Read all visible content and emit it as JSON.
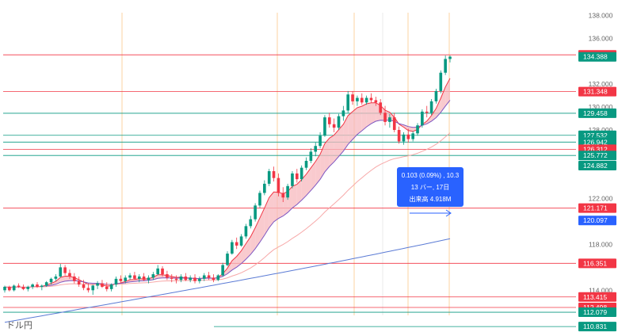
{
  "footer": {
    "label": "ドル円"
  },
  "tooltip": {
    "line1": "0.103 (0.09%) , 10.3",
    "line2": "13 バー, 17日",
    "line3": "出来高 4.918M"
  },
  "chart_data": {
    "type": "candlestick",
    "yaxis_ticks": [
      {
        "value": 138.0,
        "label": "138.000"
      },
      {
        "value": 136.0,
        "label": "136.000"
      },
      {
        "value": 132.0,
        "label": "132.000"
      },
      {
        "value": 130.0,
        "label": "130.000"
      },
      {
        "value": 128.0,
        "label": "128.000"
      },
      {
        "value": 122.0,
        "label": "122.000"
      },
      {
        "value": 118.0,
        "label": "118.000"
      },
      {
        "value": 114.0,
        "label": "114.000"
      }
    ],
    "ylim": [
      110.0,
      139.0
    ],
    "price_lines": [
      {
        "value": 134.56,
        "label": "134.560",
        "color": "#f23645",
        "line": "#f23645"
      },
      {
        "value": 134.388,
        "label": "134.388",
        "color": "#089981",
        "line": ""
      },
      {
        "value": 131.348,
        "label": "131.348",
        "color": "#f23645",
        "line": "#f23645"
      },
      {
        "value": 129.458,
        "label": "129.458",
        "color": "#089981",
        "line": "#089981"
      },
      {
        "value": 127.532,
        "label": "127.532",
        "color": "#089981",
        "line": "#089981"
      },
      {
        "value": 126.942,
        "label": "126.942",
        "color": "#089981",
        "line": "#089981"
      },
      {
        "value": 126.312,
        "label": "126.312",
        "color": "#f23645",
        "line": "#f23645"
      },
      {
        "value": 125.772,
        "label": "125.772",
        "color": "#089981",
        "line": "#089981"
      },
      {
        "value": 124.882,
        "label": "124.882",
        "color": "#089981",
        "line": ""
      },
      {
        "value": 121.171,
        "label": "121.171",
        "color": "#f23645",
        "line": "#f23645"
      },
      {
        "value": 120.097,
        "label": "120.097",
        "color": "#2962ff",
        "line": ""
      },
      {
        "value": 116.351,
        "label": "116.351",
        "color": "#f23645",
        "line": "#f23645"
      },
      {
        "value": 113.415,
        "label": "113.415",
        "color": "#f23645",
        "line": "#f23645"
      },
      {
        "value": 112.498,
        "label": "112.498",
        "color": "#f23645",
        "line": "#f23645"
      },
      {
        "value": 112.079,
        "label": "112.079",
        "color": "#089981",
        "line": "#089981"
      },
      {
        "value": 110.831,
        "label": "110.831",
        "color": "#089981",
        "line": "#089981"
      }
    ],
    "colors": {
      "up": "#089981",
      "down": "#f23645",
      "ema_fast": "#f23645",
      "ema_slow": "#7e57c2",
      "ma_mid": "#f7a8a8",
      "ma_long": "#5b7bd5",
      "cloud": "#f7b8bd",
      "vline": "#fbc88a"
    },
    "ohlc": [
      [
        114.0,
        114.4,
        113.8,
        114.3
      ],
      [
        114.3,
        114.4,
        113.9,
        114.0
      ],
      [
        114.0,
        114.5,
        113.9,
        114.4
      ],
      [
        114.4,
        114.6,
        114.2,
        114.3
      ],
      [
        114.3,
        114.5,
        114.0,
        114.1
      ],
      [
        114.1,
        114.4,
        113.9,
        114.3
      ],
      [
        114.3,
        114.6,
        114.1,
        114.5
      ],
      [
        114.5,
        114.7,
        114.2,
        114.3
      ],
      [
        114.3,
        114.5,
        114.0,
        114.4
      ],
      [
        114.4,
        114.8,
        114.3,
        114.7
      ],
      [
        114.7,
        115.1,
        114.5,
        115.0
      ],
      [
        115.0,
        115.4,
        114.8,
        115.2
      ],
      [
        115.2,
        116.3,
        115.1,
        116.0
      ],
      [
        116.0,
        116.2,
        115.3,
        115.5
      ],
      [
        115.5,
        115.8,
        115.0,
        115.2
      ],
      [
        115.2,
        115.5,
        114.6,
        114.8
      ],
      [
        114.8,
        115.2,
        114.3,
        114.5
      ],
      [
        114.5,
        114.9,
        114.0,
        114.2
      ],
      [
        114.2,
        114.6,
        113.8,
        114.0
      ],
      [
        114.0,
        114.5,
        113.6,
        114.4
      ],
      [
        114.4,
        114.8,
        114.1,
        114.6
      ],
      [
        114.6,
        114.9,
        114.2,
        114.3
      ],
      [
        114.3,
        114.7,
        113.9,
        114.1
      ],
      [
        114.1,
        114.6,
        113.9,
        114.5
      ],
      [
        114.5,
        115.2,
        114.3,
        115.0
      ],
      [
        115.0,
        115.3,
        114.6,
        114.8
      ],
      [
        114.8,
        115.3,
        114.6,
        115.1
      ],
      [
        115.1,
        115.5,
        114.9,
        115.3
      ],
      [
        115.3,
        115.6,
        114.9,
        115.0
      ],
      [
        115.0,
        115.4,
        114.7,
        115.2
      ],
      [
        115.2,
        115.5,
        114.8,
        114.9
      ],
      [
        114.9,
        115.3,
        114.6,
        115.1
      ],
      [
        115.1,
        115.6,
        114.9,
        115.4
      ],
      [
        115.4,
        116.2,
        115.3,
        115.9
      ],
      [
        115.9,
        116.1,
        115.2,
        115.4
      ],
      [
        115.4,
        115.7,
        114.9,
        115.1
      ],
      [
        115.1,
        115.4,
        114.7,
        115.0
      ],
      [
        115.0,
        115.3,
        114.6,
        114.9
      ],
      [
        114.9,
        115.4,
        114.7,
        115.2
      ],
      [
        115.2,
        115.5,
        114.8,
        114.9
      ],
      [
        114.9,
        115.3,
        114.7,
        115.1
      ],
      [
        115.1,
        115.4,
        114.6,
        114.8
      ],
      [
        114.8,
        115.2,
        114.6,
        115.0
      ],
      [
        115.0,
        115.5,
        114.8,
        115.3
      ],
      [
        115.3,
        115.6,
        114.9,
        115.1
      ],
      [
        115.1,
        115.4,
        114.7,
        114.9
      ],
      [
        114.9,
        115.4,
        114.8,
        115.3
      ],
      [
        115.3,
        116.4,
        115.2,
        116.2
      ],
      [
        116.2,
        117.4,
        116.1,
        117.2
      ],
      [
        117.2,
        118.4,
        117.1,
        118.2
      ],
      [
        118.2,
        118.6,
        117.6,
        117.9
      ],
      [
        117.9,
        118.9,
        117.8,
        118.7
      ],
      [
        118.7,
        119.8,
        118.5,
        119.6
      ],
      [
        119.6,
        120.5,
        119.4,
        120.2
      ],
      [
        120.2,
        121.6,
        120.0,
        121.4
      ],
      [
        121.4,
        122.7,
        121.2,
        122.5
      ],
      [
        122.5,
        123.6,
        122.3,
        123.3
      ],
      [
        123.3,
        124.6,
        123.1,
        124.4
      ],
      [
        124.4,
        124.8,
        123.5,
        123.8
      ],
      [
        123.8,
        124.2,
        122.2,
        122.5
      ],
      [
        122.5,
        123.0,
        121.7,
        122.1
      ],
      [
        122.1,
        123.3,
        121.9,
        123.1
      ],
      [
        123.1,
        124.4,
        122.9,
        124.2
      ],
      [
        124.2,
        124.6,
        123.4,
        123.7
      ],
      [
        123.7,
        124.9,
        123.5,
        124.7
      ],
      [
        124.7,
        125.6,
        124.5,
        125.3
      ],
      [
        125.3,
        126.4,
        125.1,
        126.1
      ],
      [
        126.1,
        126.9,
        125.7,
        126.6
      ],
      [
        126.6,
        127.8,
        126.4,
        127.5
      ],
      [
        127.5,
        129.3,
        127.4,
        129.1
      ],
      [
        129.1,
        129.5,
        128.2,
        128.5
      ],
      [
        128.5,
        129.0,
        127.8,
        128.2
      ],
      [
        128.2,
        129.4,
        128.0,
        129.2
      ],
      [
        129.2,
        130.1,
        128.8,
        129.7
      ],
      [
        129.7,
        131.4,
        129.5,
        131.1
      ],
      [
        131.1,
        131.4,
        130.2,
        130.5
      ],
      [
        130.5,
        131.0,
        130.1,
        130.8
      ],
      [
        130.8,
        131.2,
        130.2,
        130.4
      ],
      [
        130.4,
        131.0,
        130.2,
        130.8
      ],
      [
        130.8,
        131.2,
        130.4,
        130.6
      ],
      [
        130.6,
        130.9,
        130.1,
        130.4
      ],
      [
        130.4,
        130.7,
        129.3,
        129.5
      ],
      [
        129.5,
        130.1,
        128.4,
        128.7
      ],
      [
        128.7,
        129.4,
        128.2,
        129.1
      ],
      [
        129.1,
        129.5,
        127.8,
        128.0
      ],
      [
        128.0,
        128.3,
        126.8,
        127.0
      ],
      [
        127.0,
        127.8,
        126.7,
        127.6
      ],
      [
        127.6,
        128.1,
        126.9,
        127.2
      ],
      [
        127.2,
        127.9,
        127.0,
        127.7
      ],
      [
        127.7,
        128.6,
        127.5,
        128.4
      ],
      [
        128.4,
        129.8,
        128.2,
        129.6
      ],
      [
        129.6,
        130.1,
        129.1,
        129.5
      ],
      [
        129.5,
        130.7,
        129.3,
        130.5
      ],
      [
        130.5,
        131.6,
        130.3,
        131.4
      ],
      [
        131.4,
        133.2,
        131.2,
        133.0
      ],
      [
        133.0,
        134.5,
        132.8,
        134.2
      ],
      [
        134.2,
        134.5,
        133.9,
        134.4
      ]
    ]
  }
}
